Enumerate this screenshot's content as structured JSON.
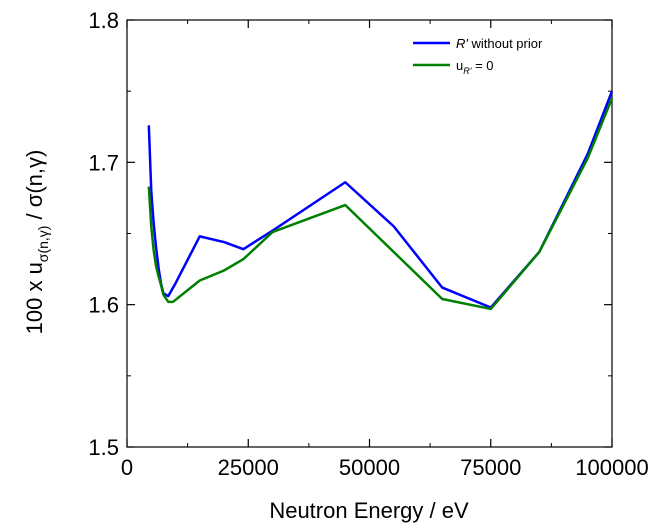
{
  "chart_data": {
    "type": "line",
    "xlabel": "Neutron Energy / eV",
    "ylabel": {
      "prefix": "100 x u",
      "subscript": "σ(n,γ)",
      "suffix": " / σ(n,γ)"
    },
    "xlim": [
      0,
      100000
    ],
    "ylim": [
      1.5,
      1.8
    ],
    "xticks": [
      0,
      25000,
      50000,
      75000,
      100000
    ],
    "xtick_labels": [
      "0",
      "25000",
      "50000",
      "75000",
      "100000"
    ],
    "yticks": [
      1.5,
      1.6,
      1.7,
      1.8
    ],
    "ytick_labels": [
      "1.5",
      "1.6",
      "1.7",
      "1.8"
    ],
    "legend_position": "top-right",
    "series": [
      {
        "name": "R' without prior",
        "name_italic": "R'",
        "name_rest": " without prior",
        "color": "#0000ff",
        "x": [
          4500,
          5000,
          5500,
          6000,
          6500,
          7000,
          7500,
          8500,
          10000,
          15000,
          20000,
          24000,
          30000,
          45000,
          55000,
          65000,
          75000,
          85000,
          95000,
          100000
        ],
        "y": [
          1.726,
          1.68,
          1.657,
          1.64,
          1.626,
          1.615,
          1.608,
          1.606,
          1.615,
          1.648,
          1.644,
          1.639,
          1.652,
          1.686,
          1.655,
          1.612,
          1.598,
          1.637,
          1.706,
          1.75
        ]
      },
      {
        "name": "u_R' = 0",
        "label_prefix": "u",
        "label_subscript": "R'",
        "label_suffix": " = 0",
        "color": "#008000",
        "x": [
          4500,
          5000,
          5500,
          6000,
          6500,
          7000,
          7500,
          8500,
          9500,
          15000,
          20000,
          24000,
          30000,
          45000,
          55000,
          65000,
          75000,
          85000,
          95000,
          100000
        ],
        "y": [
          1.683,
          1.655,
          1.638,
          1.627,
          1.62,
          1.614,
          1.607,
          1.602,
          1.602,
          1.617,
          1.624,
          1.632,
          1.651,
          1.67,
          1.637,
          1.604,
          1.597,
          1.637,
          1.703,
          1.745
        ]
      }
    ]
  }
}
